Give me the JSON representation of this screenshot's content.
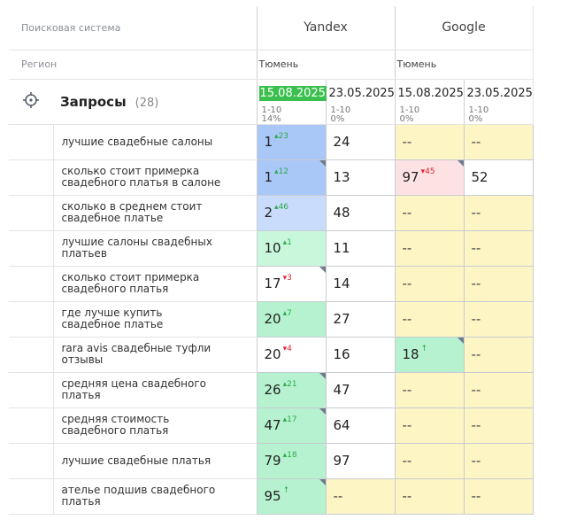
{
  "header": {
    "search_system_label": "Поисковая система",
    "region_label": "Регион",
    "engines": [
      {
        "name": "Yandex",
        "region": "Тюмень"
      },
      {
        "name": "Google",
        "region": "Тюмень"
      }
    ]
  },
  "queries": {
    "title": "Запросы",
    "count": "(28)"
  },
  "columns": [
    {
      "date": "15.08.2025",
      "range": "1-10",
      "pct": "14%",
      "active": true
    },
    {
      "date": "23.05.2025",
      "range": "1-10",
      "pct": "0%"
    },
    {
      "date": "15.08.2025",
      "range": "1-10",
      "pct": "0%"
    },
    {
      "date": "23.05.2025",
      "range": "1-10",
      "pct": "0%"
    }
  ],
  "colors": {
    "top3_dark": "#a9c7f7",
    "top3_light": "#c9dcfb",
    "top10": "#c8f7dc",
    "top30": "#b6f2cf",
    "not_found": "#fdf5c3",
    "fall": "#fde2e4",
    "plain": "#ffffff",
    "active_date": "#3bc04f"
  },
  "rows": [
    {
      "keyword": "лучшие свадебные салоны",
      "cells": [
        {
          "v": "1",
          "d": "23",
          "dir": "up",
          "bg": "top3_dark"
        },
        {
          "v": "24",
          "bg": "plain"
        },
        {
          "v": "--",
          "bg": "not_found"
        },
        {
          "v": "--",
          "bg": "not_found"
        }
      ]
    },
    {
      "keyword": "сколько стоит примерка свадебного платья в салоне",
      "cells": [
        {
          "v": "1",
          "d": "12",
          "dir": "up",
          "bg": "top3_dark",
          "corner": true
        },
        {
          "v": "13",
          "bg": "plain"
        },
        {
          "v": "97",
          "d": "45",
          "dir": "down",
          "bg": "fall",
          "corner": true
        },
        {
          "v": "52",
          "bg": "plain"
        }
      ]
    },
    {
      "keyword": "сколько в среднем стоит свадебное платье",
      "cells": [
        {
          "v": "2",
          "d": "46",
          "dir": "up",
          "bg": "top3_light"
        },
        {
          "v": "48",
          "bg": "plain"
        },
        {
          "v": "--",
          "bg": "not_found"
        },
        {
          "v": "--",
          "bg": "not_found"
        }
      ]
    },
    {
      "keyword": "лучшие салоны свадебных платьев",
      "cells": [
        {
          "v": "10",
          "d": "1",
          "dir": "up",
          "bg": "top10"
        },
        {
          "v": "11",
          "bg": "plain"
        },
        {
          "v": "--",
          "bg": "not_found"
        },
        {
          "v": "--",
          "bg": "not_found"
        }
      ]
    },
    {
      "keyword": "сколько стоит примерка свадебного платья",
      "cells": [
        {
          "v": "17",
          "d": "3",
          "dir": "down",
          "bg": "plain",
          "corner": true
        },
        {
          "v": "14",
          "bg": "plain"
        },
        {
          "v": "--",
          "bg": "not_found"
        },
        {
          "v": "--",
          "bg": "not_found"
        }
      ]
    },
    {
      "keyword": "где лучше купить свадебное платье",
      "cells": [
        {
          "v": "20",
          "d": "7",
          "dir": "up",
          "bg": "top30"
        },
        {
          "v": "27",
          "bg": "plain"
        },
        {
          "v": "--",
          "bg": "not_found"
        },
        {
          "v": "--",
          "bg": "not_found"
        }
      ]
    },
    {
      "keyword": "rara avis свадебные туфли отзывы",
      "cells": [
        {
          "v": "20",
          "d": "4",
          "dir": "down",
          "bg": "plain"
        },
        {
          "v": "16",
          "bg": "plain"
        },
        {
          "v": "18",
          "d": "↑",
          "dir": "up",
          "bg": "top30",
          "corner": true
        },
        {
          "v": "--",
          "bg": "not_found"
        }
      ]
    },
    {
      "keyword": "средняя цена свадебного платья",
      "cells": [
        {
          "v": "26",
          "d": "21",
          "dir": "up",
          "bg": "top30",
          "corner": true
        },
        {
          "v": "47",
          "bg": "plain"
        },
        {
          "v": "--",
          "bg": "not_found"
        },
        {
          "v": "--",
          "bg": "not_found"
        }
      ]
    },
    {
      "keyword": "средняя стоимость свадебного платья",
      "cells": [
        {
          "v": "47",
          "d": "17",
          "dir": "up",
          "bg": "top30",
          "corner": true
        },
        {
          "v": "64",
          "bg": "plain"
        },
        {
          "v": "--",
          "bg": "not_found"
        },
        {
          "v": "--",
          "bg": "not_found"
        }
      ]
    },
    {
      "keyword": "лучшие свадебные платья",
      "cells": [
        {
          "v": "79",
          "d": "18",
          "dir": "up",
          "bg": "top30"
        },
        {
          "v": "97",
          "bg": "plain"
        },
        {
          "v": "--",
          "bg": "not_found"
        },
        {
          "v": "--",
          "bg": "not_found"
        }
      ]
    },
    {
      "keyword": "ателье подшив свадебного платья",
      "cells": [
        {
          "v": "95",
          "d": "↑",
          "dir": "up",
          "bg": "top30",
          "corner": true
        },
        {
          "v": "--",
          "bg": "not_found"
        },
        {
          "v": "--",
          "bg": "not_found"
        },
        {
          "v": "--",
          "bg": "not_found"
        }
      ]
    }
  ]
}
